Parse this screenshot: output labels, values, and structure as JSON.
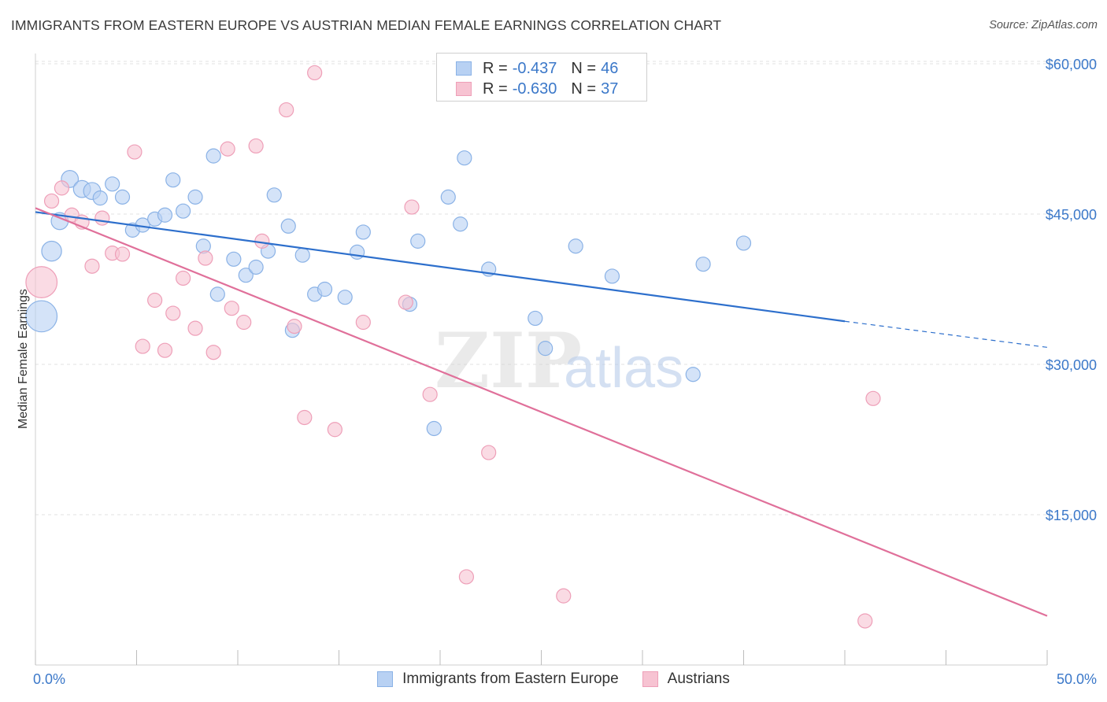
{
  "header": {
    "title": "IMMIGRANTS FROM EASTERN EUROPE VS AUSTRIAN MEDIAN FEMALE EARNINGS CORRELATION CHART",
    "source": "Source: ZipAtlas.com"
  },
  "stats_legend": [
    {
      "r_label": "R =",
      "r_value": "-0.437",
      "n_label": "N =",
      "n_value": "46"
    },
    {
      "r_label": "R =",
      "r_value": "-0.630",
      "n_label": "N =",
      "n_value": "37"
    }
  ],
  "watermark": {
    "zip": "ZIP",
    "atlas": "atlas"
  },
  "colors": {
    "blue_fill": "#b8d1f3",
    "blue_stroke": "#8ab2e6",
    "blue_line": "#2d6fcc",
    "pink_fill": "#f7c3d2",
    "pink_stroke": "#ee9fb8",
    "pink_line": "#e0709a",
    "tick_text": "#3b78c9",
    "grid": "#e2e2e2"
  },
  "chart_data": {
    "type": "scatter",
    "title": "IMMIGRANTS FROM EASTERN EUROPE VS AUSTRIAN MEDIAN FEMALE EARNINGS CORRELATION CHART",
    "xlabel": "",
    "ylabel": "Median Female Earnings",
    "xlim": [
      0,
      50
    ],
    "ylim": [
      0,
      61500
    ],
    "x_tick_labels": [
      "0.0%",
      "50.0%"
    ],
    "y_ticks": [
      15000,
      30000,
      45000,
      60000
    ],
    "y_tick_labels": [
      "$15,000",
      "$30,000",
      "$45,000",
      "$60,000"
    ],
    "grid": true,
    "legend_placement": "bottom",
    "series": [
      {
        "name": "Immigrants from Eastern Europe",
        "color": "blue",
        "r": -0.437,
        "n": 46,
        "trend": {
          "x": [
            0,
            40
          ],
          "y": [
            45200,
            34300
          ],
          "dashed_to": [
            50,
            31700
          ]
        },
        "points": [
          {
            "x": 0.3,
            "y": 34800,
            "s": 2.2
          },
          {
            "x": 0.8,
            "y": 41300,
            "s": 1.4
          },
          {
            "x": 1.2,
            "y": 44300,
            "s": 1.2
          },
          {
            "x": 1.7,
            "y": 48500,
            "s": 1.2
          },
          {
            "x": 2.3,
            "y": 47500,
            "s": 1.2
          },
          {
            "x": 2.8,
            "y": 47300,
            "s": 1.2
          },
          {
            "x": 3.2,
            "y": 46600,
            "s": 1.0
          },
          {
            "x": 3.8,
            "y": 48000,
            "s": 1.0
          },
          {
            "x": 4.3,
            "y": 46700,
            "s": 1.0
          },
          {
            "x": 4.8,
            "y": 43400,
            "s": 1.0
          },
          {
            "x": 5.3,
            "y": 43900,
            "s": 1.0
          },
          {
            "x": 5.9,
            "y": 44500,
            "s": 1.0
          },
          {
            "x": 6.4,
            "y": 44900,
            "s": 1.0
          },
          {
            "x": 6.8,
            "y": 48400,
            "s": 1.0
          },
          {
            "x": 7.3,
            "y": 45300,
            "s": 1.0
          },
          {
            "x": 7.9,
            "y": 46700,
            "s": 1.0
          },
          {
            "x": 8.3,
            "y": 41800,
            "s": 1.0
          },
          {
            "x": 8.8,
            "y": 50800,
            "s": 1.0
          },
          {
            "x": 9.0,
            "y": 37000,
            "s": 1.0
          },
          {
            "x": 9.8,
            "y": 40500,
            "s": 1.0
          },
          {
            "x": 10.4,
            "y": 38900,
            "s": 1.0
          },
          {
            "x": 10.9,
            "y": 39700,
            "s": 1.0
          },
          {
            "x": 11.5,
            "y": 41300,
            "s": 1.0
          },
          {
            "x": 11.8,
            "y": 46900,
            "s": 1.0
          },
          {
            "x": 12.5,
            "y": 43800,
            "s": 1.0
          },
          {
            "x": 12.7,
            "y": 33400,
            "s": 1.0
          },
          {
            "x": 13.2,
            "y": 40900,
            "s": 1.0
          },
          {
            "x": 13.8,
            "y": 37000,
            "s": 1.0
          },
          {
            "x": 14.3,
            "y": 37500,
            "s": 1.0
          },
          {
            "x": 15.3,
            "y": 36700,
            "s": 1.0
          },
          {
            "x": 15.9,
            "y": 41200,
            "s": 1.0
          },
          {
            "x": 16.2,
            "y": 43200,
            "s": 1.0
          },
          {
            "x": 18.5,
            "y": 36000,
            "s": 1.0
          },
          {
            "x": 18.9,
            "y": 42300,
            "s": 1.0
          },
          {
            "x": 19.7,
            "y": 23600,
            "s": 1.0
          },
          {
            "x": 20.4,
            "y": 46700,
            "s": 1.0
          },
          {
            "x": 21.0,
            "y": 44000,
            "s": 1.0
          },
          {
            "x": 21.2,
            "y": 50600,
            "s": 1.0
          },
          {
            "x": 22.4,
            "y": 39500,
            "s": 1.0
          },
          {
            "x": 24.7,
            "y": 34600,
            "s": 1.0
          },
          {
            "x": 25.2,
            "y": 31600,
            "s": 1.0
          },
          {
            "x": 26.7,
            "y": 41800,
            "s": 1.0
          },
          {
            "x": 28.5,
            "y": 38800,
            "s": 1.0
          },
          {
            "x": 32.5,
            "y": 29000,
            "s": 1.0
          },
          {
            "x": 33.0,
            "y": 40000,
            "s": 1.0
          },
          {
            "x": 35.0,
            "y": 42100,
            "s": 1.0
          }
        ]
      },
      {
        "name": "Austrians",
        "color": "pink",
        "r": -0.63,
        "n": 37,
        "trend": {
          "x": [
            0,
            50
          ],
          "y": [
            45600,
            4900
          ]
        },
        "points": [
          {
            "x": 0.3,
            "y": 38200,
            "s": 2.2
          },
          {
            "x": 0.8,
            "y": 46300,
            "s": 1.0
          },
          {
            "x": 1.3,
            "y": 47600,
            "s": 1.0
          },
          {
            "x": 1.8,
            "y": 44900,
            "s": 1.0
          },
          {
            "x": 2.3,
            "y": 44200,
            "s": 1.0
          },
          {
            "x": 2.8,
            "y": 39800,
            "s": 1.0
          },
          {
            "x": 3.3,
            "y": 44600,
            "s": 1.0
          },
          {
            "x": 3.8,
            "y": 41100,
            "s": 1.0
          },
          {
            "x": 4.3,
            "y": 41000,
            "s": 1.0
          },
          {
            "x": 4.9,
            "y": 51200,
            "s": 1.0
          },
          {
            "x": 5.3,
            "y": 31800,
            "s": 1.0
          },
          {
            "x": 5.9,
            "y": 36400,
            "s": 1.0
          },
          {
            "x": 6.4,
            "y": 31400,
            "s": 1.0
          },
          {
            "x": 6.8,
            "y": 35100,
            "s": 1.0
          },
          {
            "x": 7.3,
            "y": 38600,
            "s": 1.0
          },
          {
            "x": 7.9,
            "y": 33600,
            "s": 1.0
          },
          {
            "x": 8.4,
            "y": 40600,
            "s": 1.0
          },
          {
            "x": 8.8,
            "y": 31200,
            "s": 1.0
          },
          {
            "x": 9.5,
            "y": 51500,
            "s": 1.0
          },
          {
            "x": 9.7,
            "y": 35600,
            "s": 1.0
          },
          {
            "x": 10.3,
            "y": 34200,
            "s": 1.0
          },
          {
            "x": 10.9,
            "y": 51800,
            "s": 1.0
          },
          {
            "x": 11.2,
            "y": 42300,
            "s": 1.0
          },
          {
            "x": 12.4,
            "y": 55400,
            "s": 1.0
          },
          {
            "x": 12.8,
            "y": 33800,
            "s": 1.0
          },
          {
            "x": 13.3,
            "y": 24700,
            "s": 1.0
          },
          {
            "x": 13.8,
            "y": 59100,
            "s": 1.0
          },
          {
            "x": 14.8,
            "y": 23500,
            "s": 1.0
          },
          {
            "x": 16.2,
            "y": 34200,
            "s": 1.0
          },
          {
            "x": 18.3,
            "y": 36200,
            "s": 1.0
          },
          {
            "x": 18.6,
            "y": 45700,
            "s": 1.0
          },
          {
            "x": 19.5,
            "y": 27000,
            "s": 1.0
          },
          {
            "x": 21.3,
            "y": 8800,
            "s": 1.0
          },
          {
            "x": 22.4,
            "y": 21200,
            "s": 1.0
          },
          {
            "x": 26.1,
            "y": 6900,
            "s": 1.0
          },
          {
            "x": 41.4,
            "y": 26600,
            "s": 1.0
          },
          {
            "x": 41.0,
            "y": 4400,
            "s": 1.0
          }
        ]
      }
    ]
  }
}
